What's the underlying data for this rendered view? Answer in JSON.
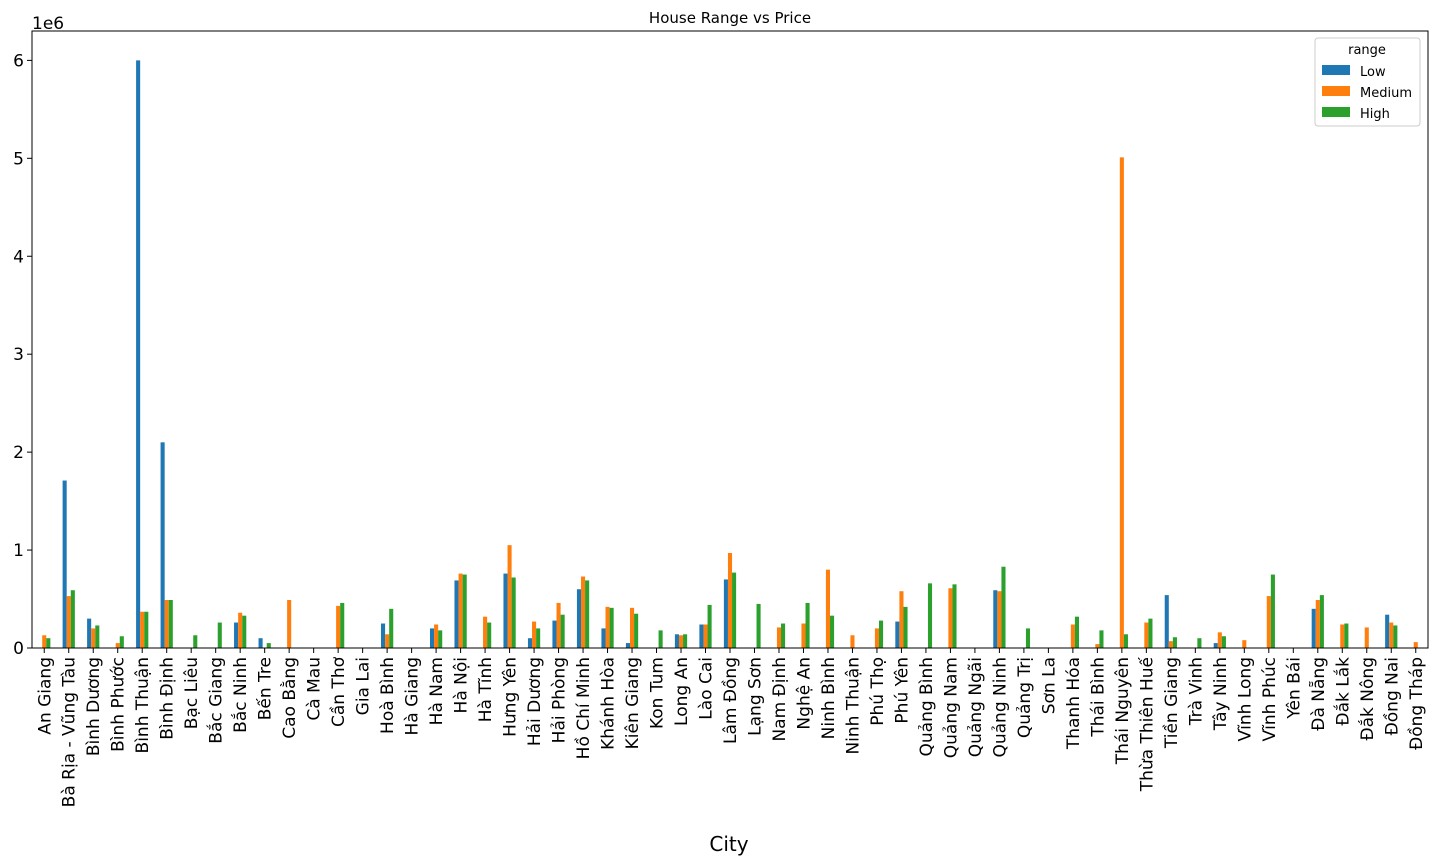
{
  "chart_data": {
    "type": "bar",
    "title": "House Range vs Price",
    "xlabel": "City",
    "ylabel": "",
    "scale_note": "1e6",
    "ylim": [
      0,
      6300000
    ],
    "yticks": [
      0,
      1000000,
      2000000,
      3000000,
      4000000,
      5000000,
      6000000
    ],
    "ytick_labels": [
      "0",
      "1",
      "2",
      "3",
      "4",
      "5",
      "6"
    ],
    "legend": {
      "title": "range",
      "position": "top-right"
    },
    "categories": [
      "An Giang",
      "Bà Rịa - Vũng Tàu",
      "Bình Dương",
      "Bình Phước",
      "Bình Thuận",
      "Bình Định",
      "Bạc Liêu",
      "Bắc Giang",
      "Bắc Ninh",
      "Bến Tre",
      "Cao Bằng",
      "Cà Mau",
      "Cần Thơ",
      "Gia Lai",
      "Hoà Bình",
      "Hà Giang",
      "Hà Nam",
      "Hà Nội",
      "Hà Tĩnh",
      "Hưng Yên",
      "Hải Dương",
      "Hải Phòng",
      "Hồ Chí Minh",
      "Khánh Hòa",
      "Kiên Giang",
      "Kon Tum",
      "Long An",
      "Lào Cai",
      "Lâm Đồng",
      "Lạng Sơn",
      "Nam Định",
      "Nghệ An",
      "Ninh Bình",
      "Ninh Thuận",
      "Phú Thọ",
      "Phú Yên",
      "Quảng Bình",
      "Quảng Nam",
      "Quảng Ngãi",
      "Quảng Ninh",
      "Quảng Trị",
      "Sơn La",
      "Thanh Hóa",
      "Thái Bình",
      "Thái Nguyên",
      "Thừa Thiên Huế",
      "Tiền Giang",
      "Trà Vinh",
      "Tây Ninh",
      "Vĩnh Long",
      "Vĩnh Phúc",
      "Yên Bái",
      "Đà Nẵng",
      "Đắk Lắk",
      "Đắk Nông",
      "Đồng Nai",
      "Đồng Tháp"
    ],
    "series": [
      {
        "name": "Low",
        "color": "#1f77b4",
        "values": [
          0,
          1710000,
          300000,
          0,
          6000000,
          2100000,
          0,
          0,
          260000,
          100000,
          0,
          0,
          0,
          0,
          250000,
          0,
          200000,
          690000,
          0,
          760000,
          100000,
          280000,
          600000,
          200000,
          50000,
          0,
          140000,
          240000,
          700000,
          0,
          0,
          0,
          0,
          0,
          0,
          270000,
          0,
          0,
          0,
          590000,
          0,
          0,
          0,
          0,
          0,
          0,
          540000,
          0,
          50000,
          0,
          0,
          0,
          400000,
          0,
          0,
          340000,
          0
        ]
      },
      {
        "name": "Medium",
        "color": "#ff7f0e",
        "values": [
          130000,
          530000,
          200000,
          50000,
          370000,
          490000,
          0,
          0,
          360000,
          0,
          490000,
          0,
          430000,
          0,
          140000,
          0,
          240000,
          760000,
          320000,
          1050000,
          270000,
          460000,
          730000,
          420000,
          410000,
          0,
          130000,
          240000,
          970000,
          0,
          210000,
          250000,
          800000,
          130000,
          200000,
          580000,
          0,
          610000,
          0,
          580000,
          0,
          0,
          240000,
          40000,
          5010000,
          260000,
          70000,
          0,
          160000,
          80000,
          530000,
          0,
          490000,
          240000,
          210000,
          260000,
          60000
        ]
      },
      {
        "name": "High",
        "color": "#2ca02c",
        "values": [
          100000,
          590000,
          230000,
          120000,
          370000,
          490000,
          130000,
          260000,
          330000,
          50000,
          0,
          0,
          460000,
          0,
          400000,
          0,
          180000,
          750000,
          260000,
          720000,
          200000,
          340000,
          690000,
          410000,
          350000,
          180000,
          140000,
          440000,
          770000,
          450000,
          250000,
          460000,
          330000,
          0,
          280000,
          420000,
          660000,
          650000,
          0,
          830000,
          200000,
          0,
          320000,
          180000,
          140000,
          300000,
          110000,
          100000,
          120000,
          0,
          750000,
          0,
          540000,
          250000,
          0,
          230000,
          0
        ]
      }
    ]
  }
}
